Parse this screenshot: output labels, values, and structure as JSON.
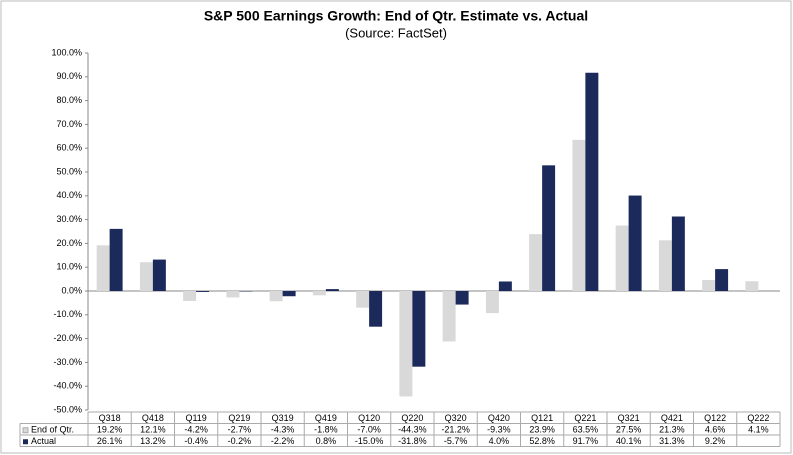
{
  "chart_data": {
    "type": "bar",
    "title": "S&P 500 Earnings Growth: End of Qtr. Estimate vs. Actual",
    "subtitle": "(Source: FactSet)",
    "categories": [
      "Q318",
      "Q418",
      "Q119",
      "Q219",
      "Q319",
      "Q419",
      "Q120",
      "Q220",
      "Q320",
      "Q420",
      "Q121",
      "Q221",
      "Q321",
      "Q421",
      "Q122",
      "Q222"
    ],
    "series": [
      {
        "name": "End of Qtr.",
        "color": "#d9d9d9",
        "values": [
          19.2,
          12.1,
          -4.2,
          -2.7,
          -4.3,
          -1.8,
          -7.0,
          -44.3,
          -21.2,
          -9.3,
          23.9,
          63.5,
          27.5,
          21.3,
          4.6,
          4.1
        ],
        "value_labels": [
          "19.2%",
          "12.1%",
          "-4.2%",
          "-2.7%",
          "-4.3%",
          "-1.8%",
          "-7.0%",
          "-44.3%",
          "-21.2%",
          "-9.3%",
          "23.9%",
          "63.5%",
          "27.5%",
          "21.3%",
          "4.6%",
          "4.1%"
        ]
      },
      {
        "name": "Actual",
        "color": "#1b2a5a",
        "values": [
          26.1,
          13.2,
          -0.4,
          -0.2,
          -2.2,
          0.8,
          -15.0,
          -31.8,
          -5.7,
          4.0,
          52.8,
          91.7,
          40.1,
          31.3,
          9.2,
          null
        ],
        "value_labels": [
          "26.1%",
          "13.2%",
          "-0.4%",
          "-0.2%",
          "-2.2%",
          "0.8%",
          "-15.0%",
          "-31.8%",
          "-5.7%",
          "4.0%",
          "52.8%",
          "91.7%",
          "40.1%",
          "31.3%",
          "9.2%",
          null
        ]
      }
    ],
    "ylim": [
      -50,
      100
    ],
    "yticks": [
      {
        "value": -50,
        "label": "-50.0%"
      },
      {
        "value": -40,
        "label": "-40.0%"
      },
      {
        "value": -30,
        "label": "-30.0%"
      },
      {
        "value": -20,
        "label": "-20.0%"
      },
      {
        "value": -10,
        "label": "-10.0%"
      },
      {
        "value": 0,
        "label": "0.0%"
      },
      {
        "value": 10,
        "label": "10.0%"
      },
      {
        "value": 20,
        "label": "20.0%"
      },
      {
        "value": 30,
        "label": "30.0%"
      },
      {
        "value": 40,
        "label": "40.0%"
      },
      {
        "value": 50,
        "label": "50.0%"
      },
      {
        "value": 60,
        "label": "60.0%"
      },
      {
        "value": 70,
        "label": "70.0%"
      },
      {
        "value": 80,
        "label": "80.0%"
      },
      {
        "value": 90,
        "label": "90.0%"
      },
      {
        "value": 100,
        "label": "100.0%"
      }
    ]
  }
}
